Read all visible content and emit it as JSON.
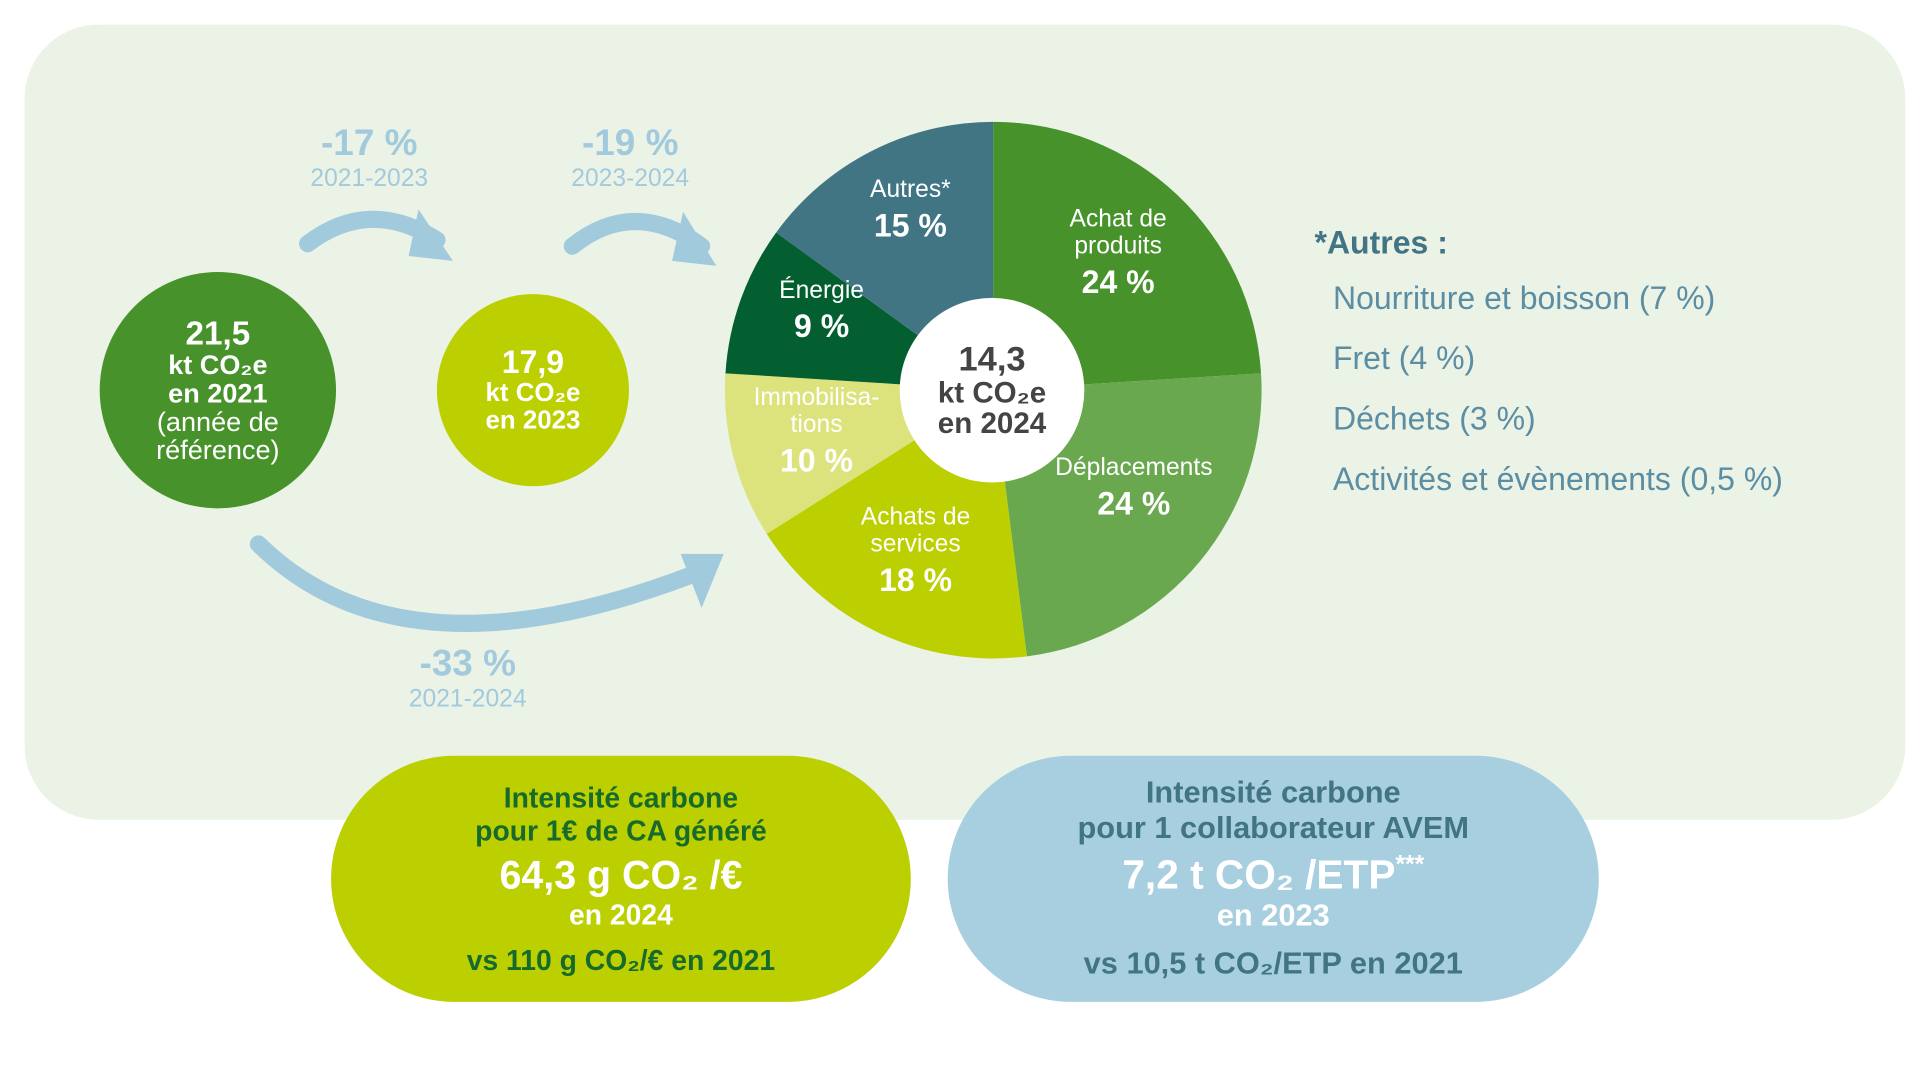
{
  "colors": {
    "panel": "#ebf3e7",
    "dark_green": "#47922a",
    "lime": "#bccf00",
    "arrow": "#a2cadd",
    "teal": "#417584"
  },
  "bubbles": {
    "y2021": {
      "value": "21,5",
      "unit": "kt CO₂e",
      "year": "en 2021",
      "note": "(année de référence)"
    },
    "y2023": {
      "value": "17,9",
      "unit": "kt CO₂e",
      "year": "en 2023"
    }
  },
  "changes": [
    {
      "pct": "-17 %",
      "period": "2021-2023"
    },
    {
      "pct": "-19 %",
      "period": "2023-2024"
    },
    {
      "pct": "-33 %",
      "period": "2021-2024"
    }
  ],
  "chart_data": {
    "type": "pie",
    "center_label": {
      "value": "14,3",
      "unit": "kt CO₂e",
      "year": "en 2024"
    },
    "slices": [
      {
        "label": "Achat de produits",
        "value": 24,
        "text": "24 %",
        "color": "#47922a"
      },
      {
        "label": "Déplacements",
        "value": 24,
        "text": "24 %",
        "color": "#6aa84f"
      },
      {
        "label": "Achats de services",
        "value": 18,
        "text": "18 %",
        "color": "#bccf00"
      },
      {
        "label": "Immobilisa-tions",
        "value": 10,
        "text": "10 %",
        "color": "#dde37c"
      },
      {
        "label": "Énergie",
        "value": 9,
        "text": "9 %",
        "color": "#035f30"
      },
      {
        "label": "Autres*",
        "value": 15,
        "text": "15 %",
        "color": "#417584"
      }
    ]
  },
  "legend": {
    "title": "*Autres :",
    "items": [
      "Nourriture et boisson (7 %)",
      "Fret (4 %)",
      "Déchets (3 %)",
      "Activités et évènements (0,5 %)"
    ]
  },
  "cards": [
    {
      "line1": "Intensité carbone",
      "line2": "pour 1€ de CA généré",
      "value": "64,3 g CO₂ /€",
      "year": "en 2024",
      "compare": "vs 110 g CO₂/€ en 2021"
    },
    {
      "line1": "Intensité carbone",
      "line2": "pour 1 collaborateur AVEM",
      "value": "7,2 t CO₂ /ETP",
      "mark": "***",
      "year": "en 2023",
      "compare": "vs 10,5 t CO₂/ETP en 2021"
    }
  ]
}
